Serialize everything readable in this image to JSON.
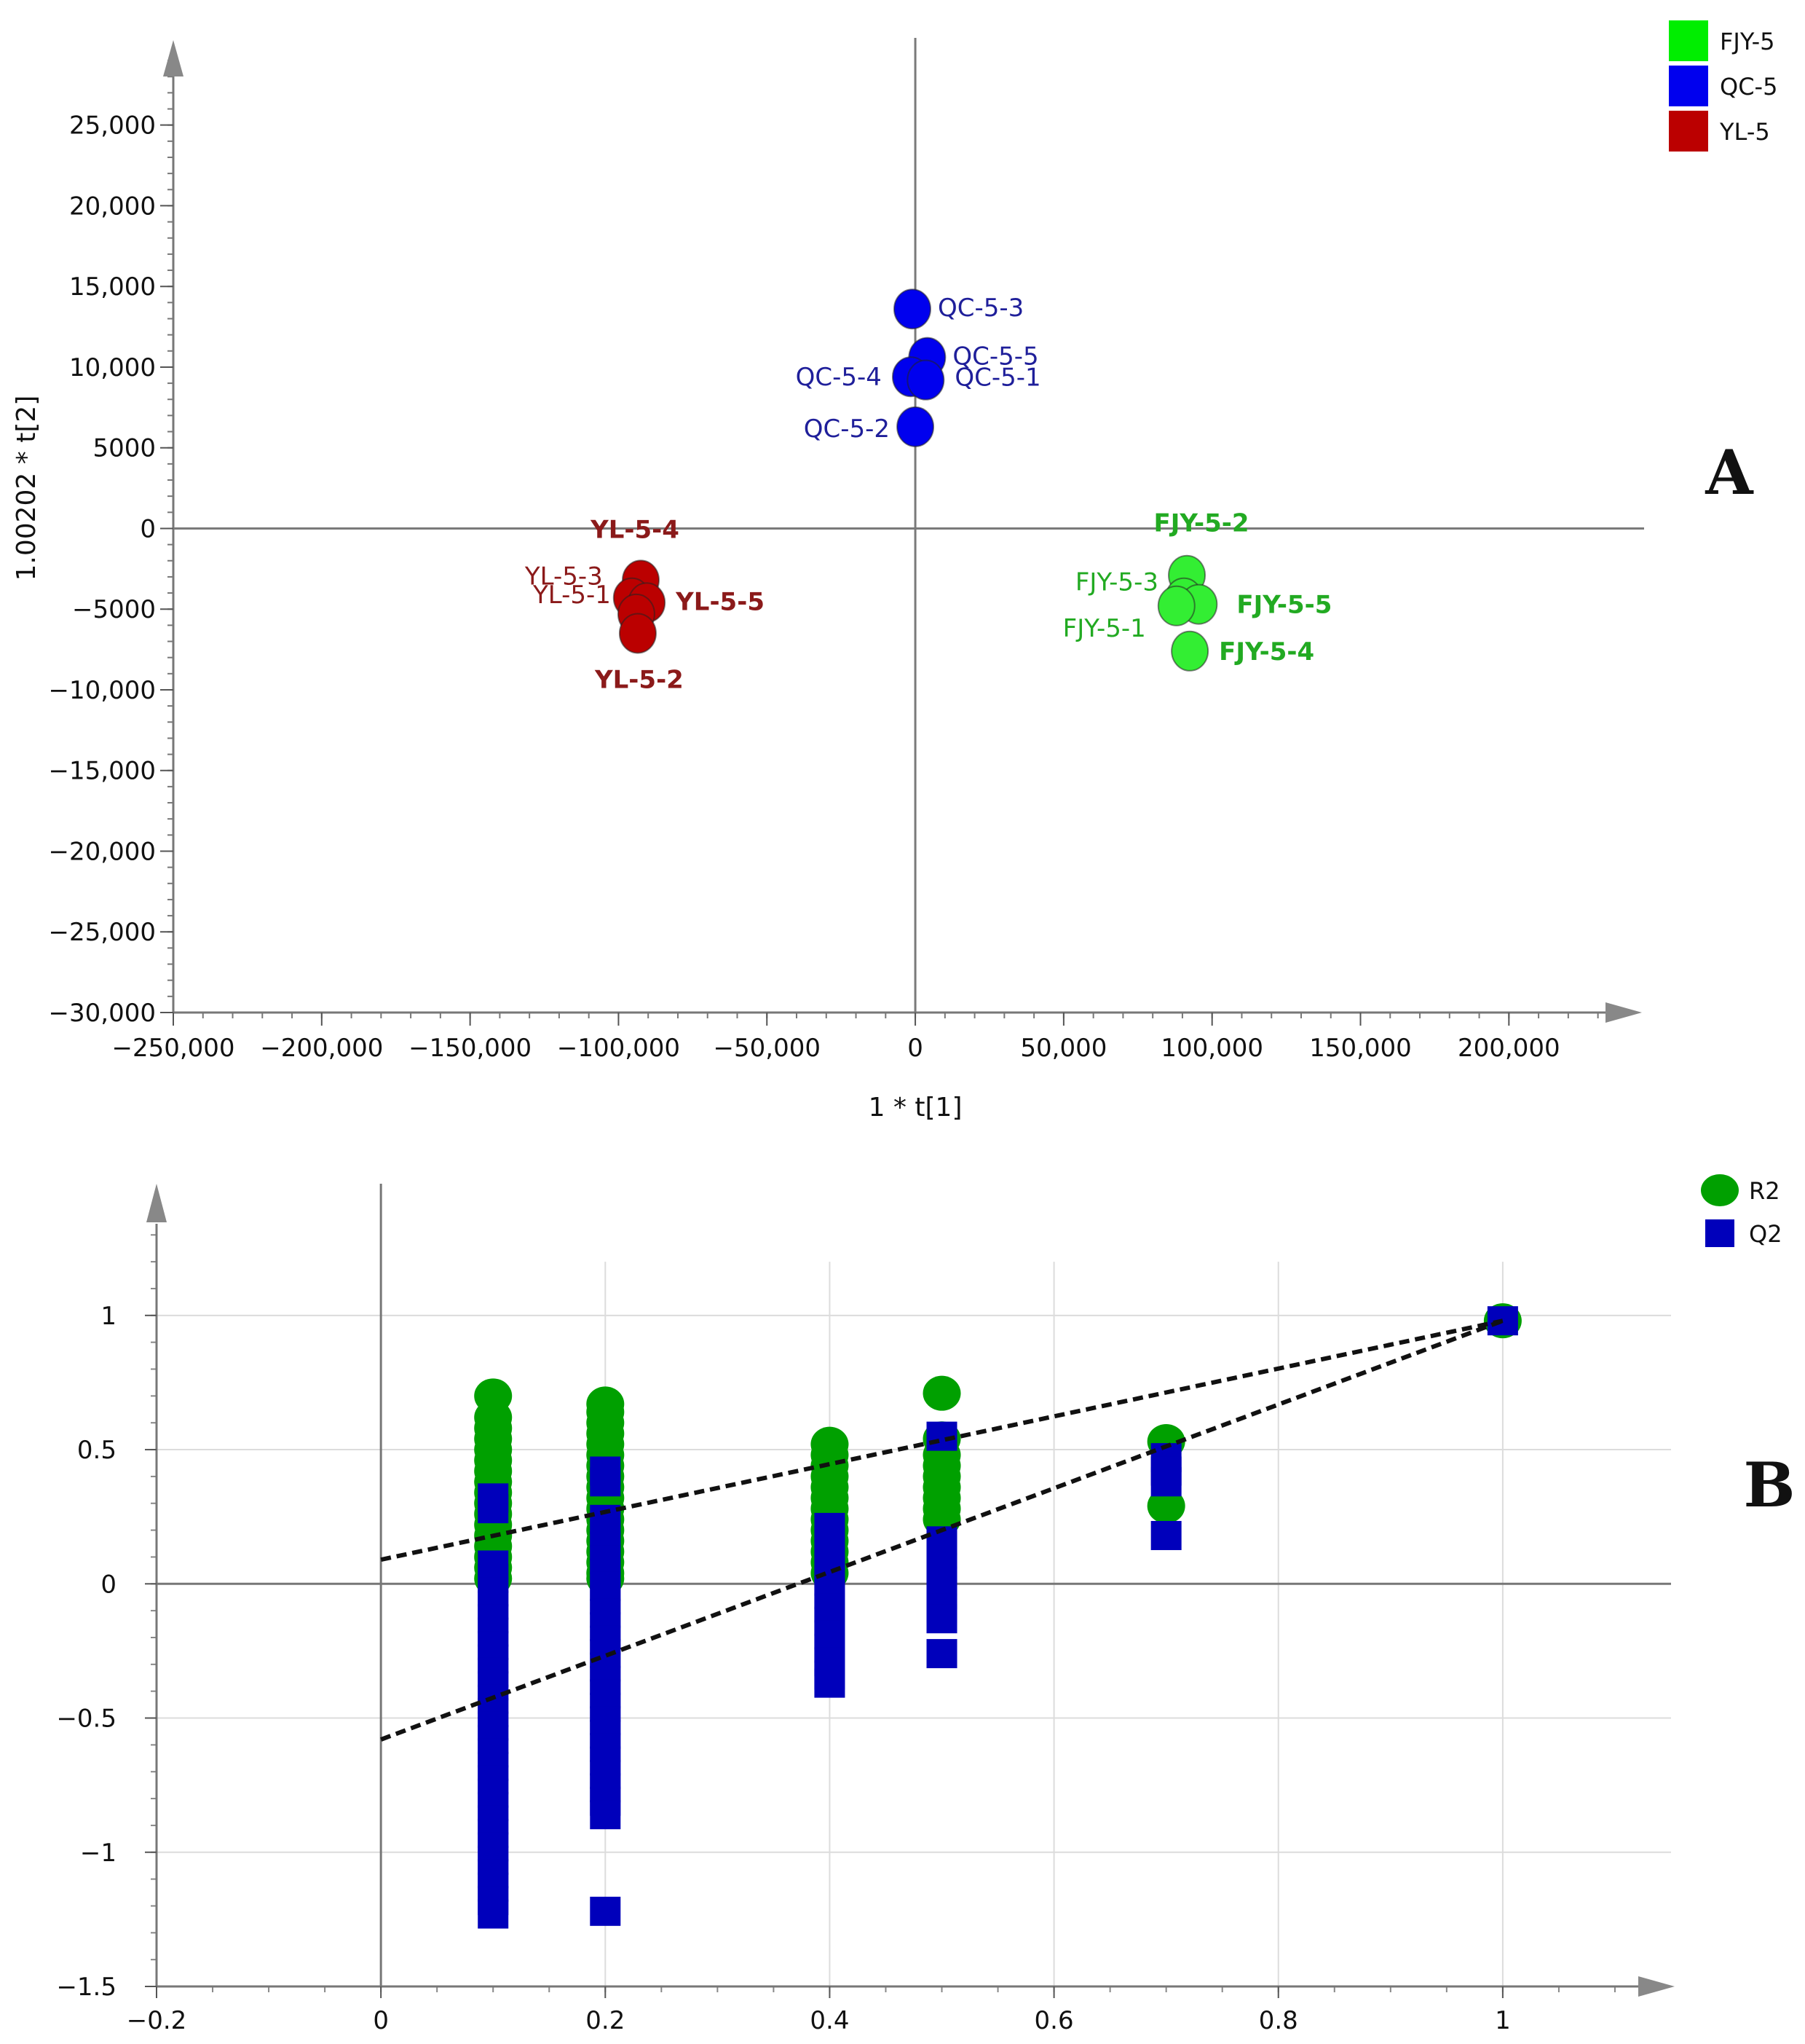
{
  "chart_data": [
    {
      "panel": "A",
      "type": "scatter",
      "xlabel": "1 * t[1]",
      "ylabel": "1.00202 * t[2]",
      "xlim": [
        -250000,
        235000
      ],
      "ylim": [
        -30000,
        29500
      ],
      "x_ticks": [
        -250000,
        -200000,
        -150000,
        -100000,
        -50000,
        0,
        50000,
        100000,
        150000,
        200000
      ],
      "x_tick_labels": [
        "−250,000",
        "−200,000",
        "−150,000",
        "−100,000",
        "−50,000",
        "0",
        "50,000",
        "100,000",
        "150,000",
        "200,000"
      ],
      "y_ticks": [
        25000,
        20000,
        15000,
        10000,
        5000,
        0,
        -5000,
        -10000,
        -15000,
        -20000,
        -25000,
        -30000
      ],
      "y_tick_labels": [
        "25,000",
        "20,000",
        "15,000",
        "10,000",
        "5000",
        "0",
        "−5000",
        "−10,000",
        "−15,000",
        "−20,000",
        "−25,000",
        "−30,000"
      ],
      "legend": [
        {
          "name": "FJY-5",
          "color": "#00ee00"
        },
        {
          "name": "QC-5",
          "color": "#0000ee"
        },
        {
          "name": "YL-5",
          "color": "#bb0000"
        }
      ],
      "series": [
        {
          "name": "QC-5",
          "color": "#0000ee",
          "label_color": "#1f1f9a",
          "points": [
            {
              "label": "QC-5-3",
              "x": -1000,
              "y": 13600
            },
            {
              "label": "QC-5-5",
              "x": 4000,
              "y": 10600
            },
            {
              "label": "QC-5-4",
              "x": -1500,
              "y": 9400
            },
            {
              "label": "QC-5-1",
              "x": 3500,
              "y": 9200
            },
            {
              "label": "QC-5-2",
              "x": 0,
              "y": 6300
            }
          ]
        },
        {
          "name": "YL-5",
          "color": "#bb0000",
          "label_color": "#8b1a1a",
          "points": [
            {
              "label": "YL-5-4",
              "x": -92500,
              "y": -3200
            },
            {
              "label": "YL-5-3",
              "x": -95500,
              "y": -4300
            },
            {
              "label": "YL-5-5",
              "x": -90500,
              "y": -4600
            },
            {
              "label": "YL-5-1",
              "x": -94000,
              "y": -5300
            },
            {
              "label": "YL-5-2",
              "x": -93500,
              "y": -6500
            }
          ]
        },
        {
          "name": "FJY-5",
          "color": "#33ee33",
          "label_color": "#22aa22",
          "points": [
            {
              "label": "FJY-5-2",
              "x": 91500,
              "y": -2900
            },
            {
              "label": "FJY-5-3",
              "x": 90500,
              "y": -4300
            },
            {
              "label": "FJY-5-5",
              "x": 95500,
              "y": -4700
            },
            {
              "label": "FJY-5-1",
              "x": 88000,
              "y": -4800
            },
            {
              "label": "FJY-5-4",
              "x": 92500,
              "y": -7600
            }
          ]
        }
      ]
    },
    {
      "panel": "B",
      "type": "scatter",
      "xlabel": "",
      "ylabel": "",
      "xlim": [
        -0.2,
        1.15
      ],
      "ylim": [
        -1.5,
        1.45
      ],
      "x_ticks": [
        -0.2,
        0,
        0.2,
        0.4,
        0.6,
        0.8,
        1
      ],
      "x_tick_labels": [
        "−0.2",
        "0",
        "0.2",
        "0.4",
        "0.6",
        "0.8",
        "1"
      ],
      "y_ticks": [
        1,
        0.5,
        0,
        -0.5,
        -1,
        -1.5
      ],
      "y_tick_labels": [
        "1",
        "0.5",
        "0",
        "−0.5",
        "−1",
        "−1.5"
      ],
      "legend": [
        {
          "name": "R2",
          "color": "#00a000",
          "marker": "circle"
        },
        {
          "name": "Q2",
          "color": "#0000bb",
          "marker": "square"
        }
      ],
      "series": [
        {
          "name": "R2",
          "color": "#00a000",
          "marker": "circle",
          "points": [
            [
              0.1,
              0.7
            ],
            [
              0.1,
              0.62
            ],
            [
              0.1,
              0.58
            ],
            [
              0.1,
              0.54
            ],
            [
              0.1,
              0.5
            ],
            [
              0.1,
              0.46
            ],
            [
              0.1,
              0.42
            ],
            [
              0.1,
              0.38
            ],
            [
              0.1,
              0.34
            ],
            [
              0.1,
              0.3
            ],
            [
              0.1,
              0.26
            ],
            [
              0.1,
              0.22
            ],
            [
              0.1,
              0.18
            ],
            [
              0.1,
              0.14
            ],
            [
              0.1,
              0.1
            ],
            [
              0.1,
              0.06
            ],
            [
              0.1,
              0.02
            ],
            [
              0.2,
              0.67
            ],
            [
              0.2,
              0.64
            ],
            [
              0.2,
              0.6
            ],
            [
              0.2,
              0.56
            ],
            [
              0.2,
              0.52
            ],
            [
              0.2,
              0.48
            ],
            [
              0.2,
              0.44
            ],
            [
              0.2,
              0.4
            ],
            [
              0.2,
              0.36
            ],
            [
              0.2,
              0.32
            ],
            [
              0.2,
              0.28
            ],
            [
              0.2,
              0.24
            ],
            [
              0.2,
              0.2
            ],
            [
              0.2,
              0.16
            ],
            [
              0.2,
              0.12
            ],
            [
              0.2,
              0.08
            ],
            [
              0.2,
              0.04
            ],
            [
              0.2,
              0.02
            ],
            [
              0.4,
              0.52
            ],
            [
              0.4,
              0.48
            ],
            [
              0.4,
              0.44
            ],
            [
              0.4,
              0.4
            ],
            [
              0.4,
              0.36
            ],
            [
              0.4,
              0.32
            ],
            [
              0.4,
              0.28
            ],
            [
              0.4,
              0.24
            ],
            [
              0.4,
              0.2
            ],
            [
              0.4,
              0.16
            ],
            [
              0.4,
              0.12
            ],
            [
              0.4,
              0.08
            ],
            [
              0.4,
              0.04
            ],
            [
              0.5,
              0.71
            ],
            [
              0.5,
              0.54
            ],
            [
              0.5,
              0.48
            ],
            [
              0.5,
              0.44
            ],
            [
              0.5,
              0.4
            ],
            [
              0.5,
              0.36
            ],
            [
              0.5,
              0.32
            ],
            [
              0.5,
              0.28
            ],
            [
              0.5,
              0.24
            ],
            [
              0.7,
              0.53
            ],
            [
              0.7,
              0.29
            ],
            [
              1,
              0.98
            ]
          ]
        },
        {
          "name": "Q2",
          "color": "#0000bb",
          "marker": "square",
          "points": [
            [
              0.1,
              0.32
            ],
            [
              0.1,
              0.28
            ],
            [
              0.1,
              0.07
            ],
            [
              0.1,
              0.02
            ],
            [
              0.1,
              -0.03
            ],
            [
              0.1,
              -0.08
            ],
            [
              0.1,
              -0.13
            ],
            [
              0.1,
              -0.18
            ],
            [
              0.1,
              -0.23
            ],
            [
              0.1,
              -0.28
            ],
            [
              0.1,
              -0.33
            ],
            [
              0.1,
              -0.38
            ],
            [
              0.1,
              -0.43
            ],
            [
              0.1,
              -0.48
            ],
            [
              0.1,
              -0.53
            ],
            [
              0.1,
              -0.58
            ],
            [
              0.1,
              -0.63
            ],
            [
              0.1,
              -0.68
            ],
            [
              0.1,
              -0.73
            ],
            [
              0.1,
              -0.78
            ],
            [
              0.1,
              -0.83
            ],
            [
              0.1,
              -0.88
            ],
            [
              0.1,
              -0.93
            ],
            [
              0.1,
              -0.98
            ],
            [
              0.1,
              -1.03
            ],
            [
              0.1,
              -1.08
            ],
            [
              0.1,
              -1.13
            ],
            [
              0.1,
              -1.18
            ],
            [
              0.1,
              -1.23
            ],
            [
              0.2,
              0.42
            ],
            [
              0.2,
              0.38
            ],
            [
              0.2,
              0.24
            ],
            [
              0.2,
              0.19
            ],
            [
              0.2,
              0.14
            ],
            [
              0.2,
              0.09
            ],
            [
              0.2,
              0.04
            ],
            [
              0.2,
              -0.01
            ],
            [
              0.2,
              -0.06
            ],
            [
              0.2,
              -0.11
            ],
            [
              0.2,
              -0.16
            ],
            [
              0.2,
              -0.21
            ],
            [
              0.2,
              -0.26
            ],
            [
              0.2,
              -0.31
            ],
            [
              0.2,
              -0.36
            ],
            [
              0.2,
              -0.41
            ],
            [
              0.2,
              -0.46
            ],
            [
              0.2,
              -0.51
            ],
            [
              0.2,
              -0.56
            ],
            [
              0.2,
              -0.61
            ],
            [
              0.2,
              -0.66
            ],
            [
              0.2,
              -0.71
            ],
            [
              0.2,
              -0.76
            ],
            [
              0.2,
              -0.81
            ],
            [
              0.2,
              -0.86
            ],
            [
              0.2,
              -1.22
            ],
            [
              0.4,
              0.21
            ],
            [
              0.4,
              0.16
            ],
            [
              0.4,
              0.11
            ],
            [
              0.4,
              0.06
            ],
            [
              0.4,
              0.01
            ],
            [
              0.4,
              -0.04
            ],
            [
              0.4,
              -0.09
            ],
            [
              0.4,
              -0.14
            ],
            [
              0.4,
              -0.19
            ],
            [
              0.4,
              -0.24
            ],
            [
              0.4,
              -0.29
            ],
            [
              0.4,
              -0.34
            ],
            [
              0.4,
              -0.37
            ],
            [
              0.5,
              0.55
            ],
            [
              0.5,
              0.16
            ],
            [
              0.5,
              0.11
            ],
            [
              0.5,
              0.06
            ],
            [
              0.5,
              0.01
            ],
            [
              0.5,
              -0.04
            ],
            [
              0.5,
              -0.09
            ],
            [
              0.5,
              -0.13
            ],
            [
              0.5,
              -0.26
            ],
            [
              0.7,
              0.47
            ],
            [
              0.7,
              0.42
            ],
            [
              0.7,
              0.38
            ],
            [
              0.7,
              0.18
            ],
            [
              1,
              0.98
            ]
          ]
        }
      ],
      "regression_lines": [
        {
          "name": "R2",
          "intercept": 0.09,
          "slope": 0.89
        },
        {
          "name": "Q2",
          "intercept": -0.58,
          "slope": 1.56
        }
      ]
    }
  ],
  "panel_labels": [
    "A",
    "B"
  ]
}
